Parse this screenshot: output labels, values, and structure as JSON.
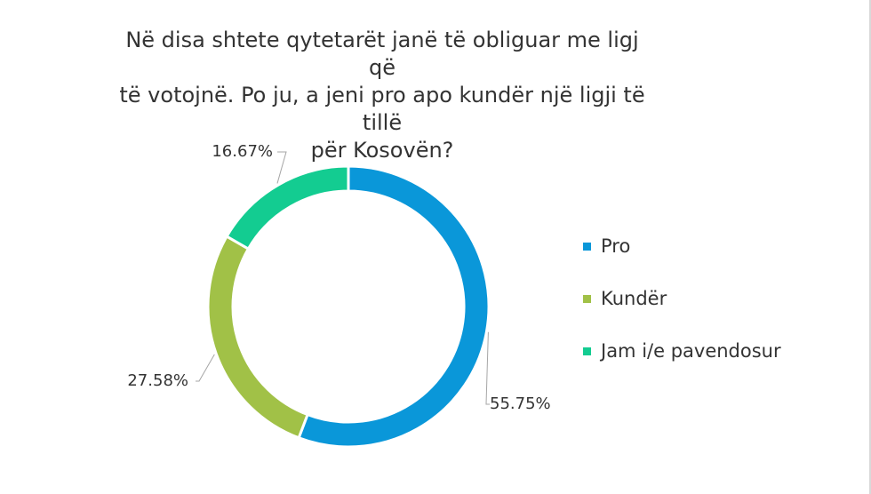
{
  "chart_data": {
    "type": "pie",
    "title_lines": [
      "Në disa shtete qytetarët janë të obliguar me ligj që",
      "të votojnë. Po ju, a jeni pro apo kundër një ligji të tillë",
      "për Kosovën?"
    ],
    "categories": [
      "Pro",
      "Kundër",
      "Jam i/e pavendosur"
    ],
    "values": [
      55.75,
      27.58,
      16.67
    ],
    "data_labels": [
      "55.75%",
      "27.58%",
      "16.67%"
    ],
    "colors": [
      "#0a97d9",
      "#a1c147",
      "#13cc91"
    ],
    "legend_position": "right",
    "donut": true
  }
}
